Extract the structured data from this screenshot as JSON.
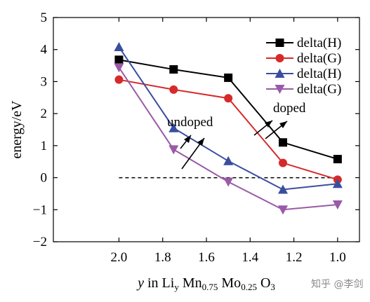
{
  "chart_data": {
    "type": "line",
    "x": [
      2.0,
      1.75,
      1.5,
      1.25,
      1.0
    ],
    "xlim": [
      2.3,
      0.9
    ],
    "ylim": [
      -2,
      5
    ],
    "xticks": [
      "2.0",
      "1.8",
      "1.6",
      "1.4",
      "1.2",
      "1.0"
    ],
    "xtick_values": [
      2.0,
      1.8,
      1.6,
      1.4,
      1.2,
      1.0
    ],
    "yticks": [
      "5",
      "4",
      "3",
      "2",
      "1",
      "0",
      "−1",
      "−2"
    ],
    "ytick_values": [
      5,
      4,
      3,
      2,
      1,
      0,
      -1,
      -2
    ],
    "ylabel": "energy/eV",
    "xlabel": {
      "pre": "y",
      "mid": " in Li",
      "sub1": "y",
      "mn": " Mn",
      "sub2": "0.75",
      "mo": " Mo",
      "sub3": "0.25",
      "o": " O",
      "sub4": "3"
    },
    "grid": false,
    "legend_position": "top-right",
    "reference_line": {
      "y": 0,
      "style": "dashed"
    },
    "series": [
      {
        "name": "delta(H)",
        "color": "#000000",
        "marker": "square",
        "values": [
          3.68,
          3.38,
          3.12,
          1.1,
          0.58
        ]
      },
      {
        "name": "delta(G)",
        "color": "#d62a2a",
        "marker": "circle",
        "values": [
          3.06,
          2.75,
          2.48,
          0.46,
          -0.06
        ]
      },
      {
        "name": "delta(H)",
        "color": "#3a4ea0",
        "marker": "triangle-up",
        "values": [
          4.08,
          1.55,
          0.52,
          -0.37,
          -0.19
        ]
      },
      {
        "name": "delta(G)",
        "color": "#9a5aa8",
        "marker": "triangle-down",
        "values": [
          3.44,
          0.88,
          -0.13,
          -1.0,
          -0.84
        ]
      }
    ],
    "annotations": [
      {
        "text": "undoped"
      },
      {
        "text": "doped"
      }
    ]
  },
  "watermark": "知乎 @李剑"
}
